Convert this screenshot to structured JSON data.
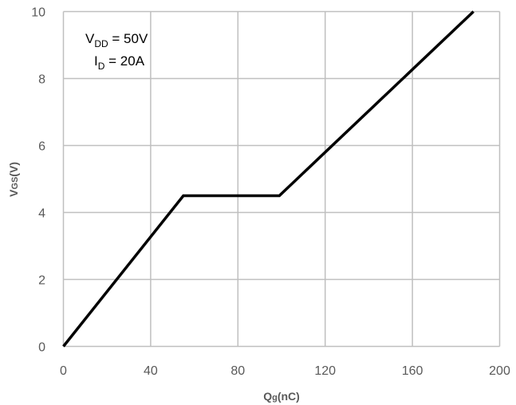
{
  "chart_data": {
    "type": "line",
    "title": "",
    "xlabel": {
      "main": "Q",
      "sub": "g",
      "rest": "(nC)"
    },
    "ylabel": {
      "main": "V",
      "sub": "GS",
      "rest": "(V)"
    },
    "xlim": [
      0,
      200
    ],
    "ylim": [
      0,
      10
    ],
    "xticks": [
      0,
      40,
      80,
      120,
      160,
      200
    ],
    "yticks": [
      0,
      2,
      4,
      6,
      8,
      10
    ],
    "grid": true,
    "series": [
      {
        "color": "#000000",
        "x": [
          0,
          55,
          99,
          188
        ],
        "y": [
          0,
          4.5,
          4.5,
          10
        ]
      }
    ],
    "annotations": [
      {
        "main": "V",
        "sub": "DD",
        "rest": " = 50V"
      },
      {
        "main": "I",
        "sub": "D",
        "rest": " = 20A"
      }
    ],
    "grid_color": "#bfbfbf"
  }
}
